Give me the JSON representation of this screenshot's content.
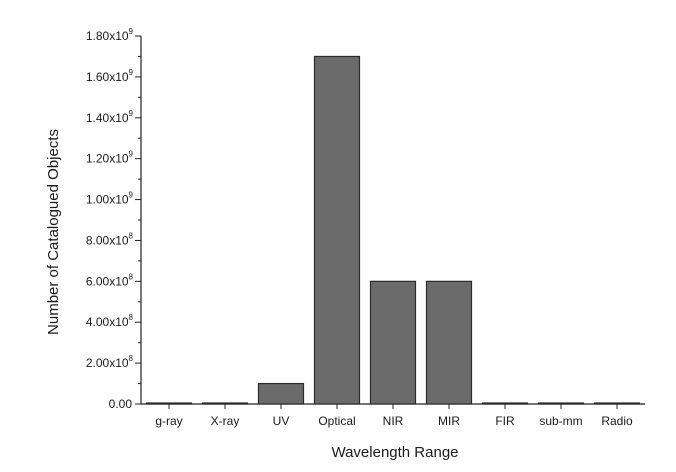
{
  "chart_data": {
    "type": "bar",
    "title": "",
    "xlabel": "Wavelength Range",
    "ylabel": "Number of Catalogued Objects",
    "categories": [
      "g-ray",
      "X-ray",
      "UV",
      "Optical",
      "NIR",
      "MIR",
      "FIR",
      "sub-mm",
      "Radio"
    ],
    "values": [
      500000,
      2000000,
      100000000,
      1700000000,
      600000000,
      600000000,
      2000000,
      100000,
      2000000
    ],
    "ylim": [
      0,
      1800000000
    ],
    "y_major_ticks": [
      0,
      200000000,
      400000000,
      600000000,
      800000000,
      1000000000,
      1200000000,
      1400000000,
      1600000000,
      1800000000
    ],
    "y_tick_labels": [
      {
        "mantissa": "0.00",
        "exponent": ""
      },
      {
        "mantissa": "2.00x10",
        "exponent": "8"
      },
      {
        "mantissa": "4.00x10",
        "exponent": "8"
      },
      {
        "mantissa": "6.00x10",
        "exponent": "8"
      },
      {
        "mantissa": "8.00x10",
        "exponent": "8"
      },
      {
        "mantissa": "1.00x10",
        "exponent": "9"
      },
      {
        "mantissa": "1.20x10",
        "exponent": "9"
      },
      {
        "mantissa": "1.40x10",
        "exponent": "9"
      },
      {
        "mantissa": "1.60x10",
        "exponent": "9"
      },
      {
        "mantissa": "1.80x10",
        "exponent": "9"
      }
    ],
    "bar_color": "#6b6b6b",
    "grid": false,
    "legend": "none"
  }
}
